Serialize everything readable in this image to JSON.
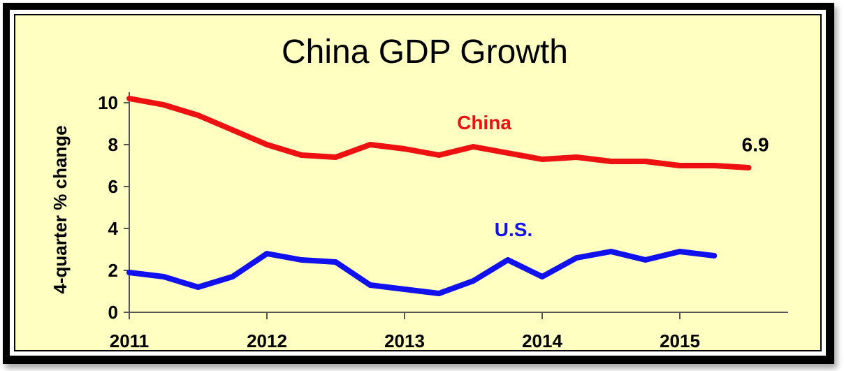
{
  "chart_data": {
    "type": "line",
    "title": "China GDP Growth",
    "ylabel": "4-quarter % change",
    "xlabel": "",
    "ylim": [
      0,
      10
    ],
    "xlim": [
      2011.0,
      2015.75
    ],
    "yticks": [
      0,
      2,
      4,
      6,
      8,
      10
    ],
    "xticks": [
      "2011",
      "2012",
      "2013",
      "2014",
      "2015"
    ],
    "grid": false,
    "series": [
      {
        "name": "China",
        "color": "#ee1111",
        "x": [
          2011.0,
          2011.25,
          2011.5,
          2011.75,
          2012.0,
          2012.25,
          2012.5,
          2012.75,
          2013.0,
          2013.25,
          2013.5,
          2013.75,
          2014.0,
          2014.25,
          2014.5,
          2014.75,
          2015.0,
          2015.25,
          2015.5
        ],
        "values": [
          10.2,
          9.9,
          9.4,
          8.7,
          8.0,
          7.5,
          7.4,
          8.0,
          7.8,
          7.5,
          7.9,
          7.6,
          7.3,
          7.4,
          7.2,
          7.2,
          7.0,
          7.0,
          6.9
        ]
      },
      {
        "name": "U.S.",
        "color": "#1111ee",
        "x": [
          2011.0,
          2011.25,
          2011.5,
          2011.75,
          2012.0,
          2012.25,
          2012.5,
          2012.75,
          2013.0,
          2013.25,
          2013.5,
          2013.75,
          2014.0,
          2014.25,
          2014.5,
          2014.75,
          2015.0,
          2015.25
        ],
        "values": [
          1.9,
          1.7,
          1.2,
          1.7,
          2.8,
          2.5,
          2.4,
          1.3,
          1.1,
          0.9,
          1.5,
          2.5,
          1.7,
          2.6,
          2.9,
          2.5,
          2.9,
          2.7
        ]
      }
    ],
    "annotations": [
      {
        "text": "6.9",
        "x": 2015.45,
        "y": 7.95
      }
    ]
  }
}
